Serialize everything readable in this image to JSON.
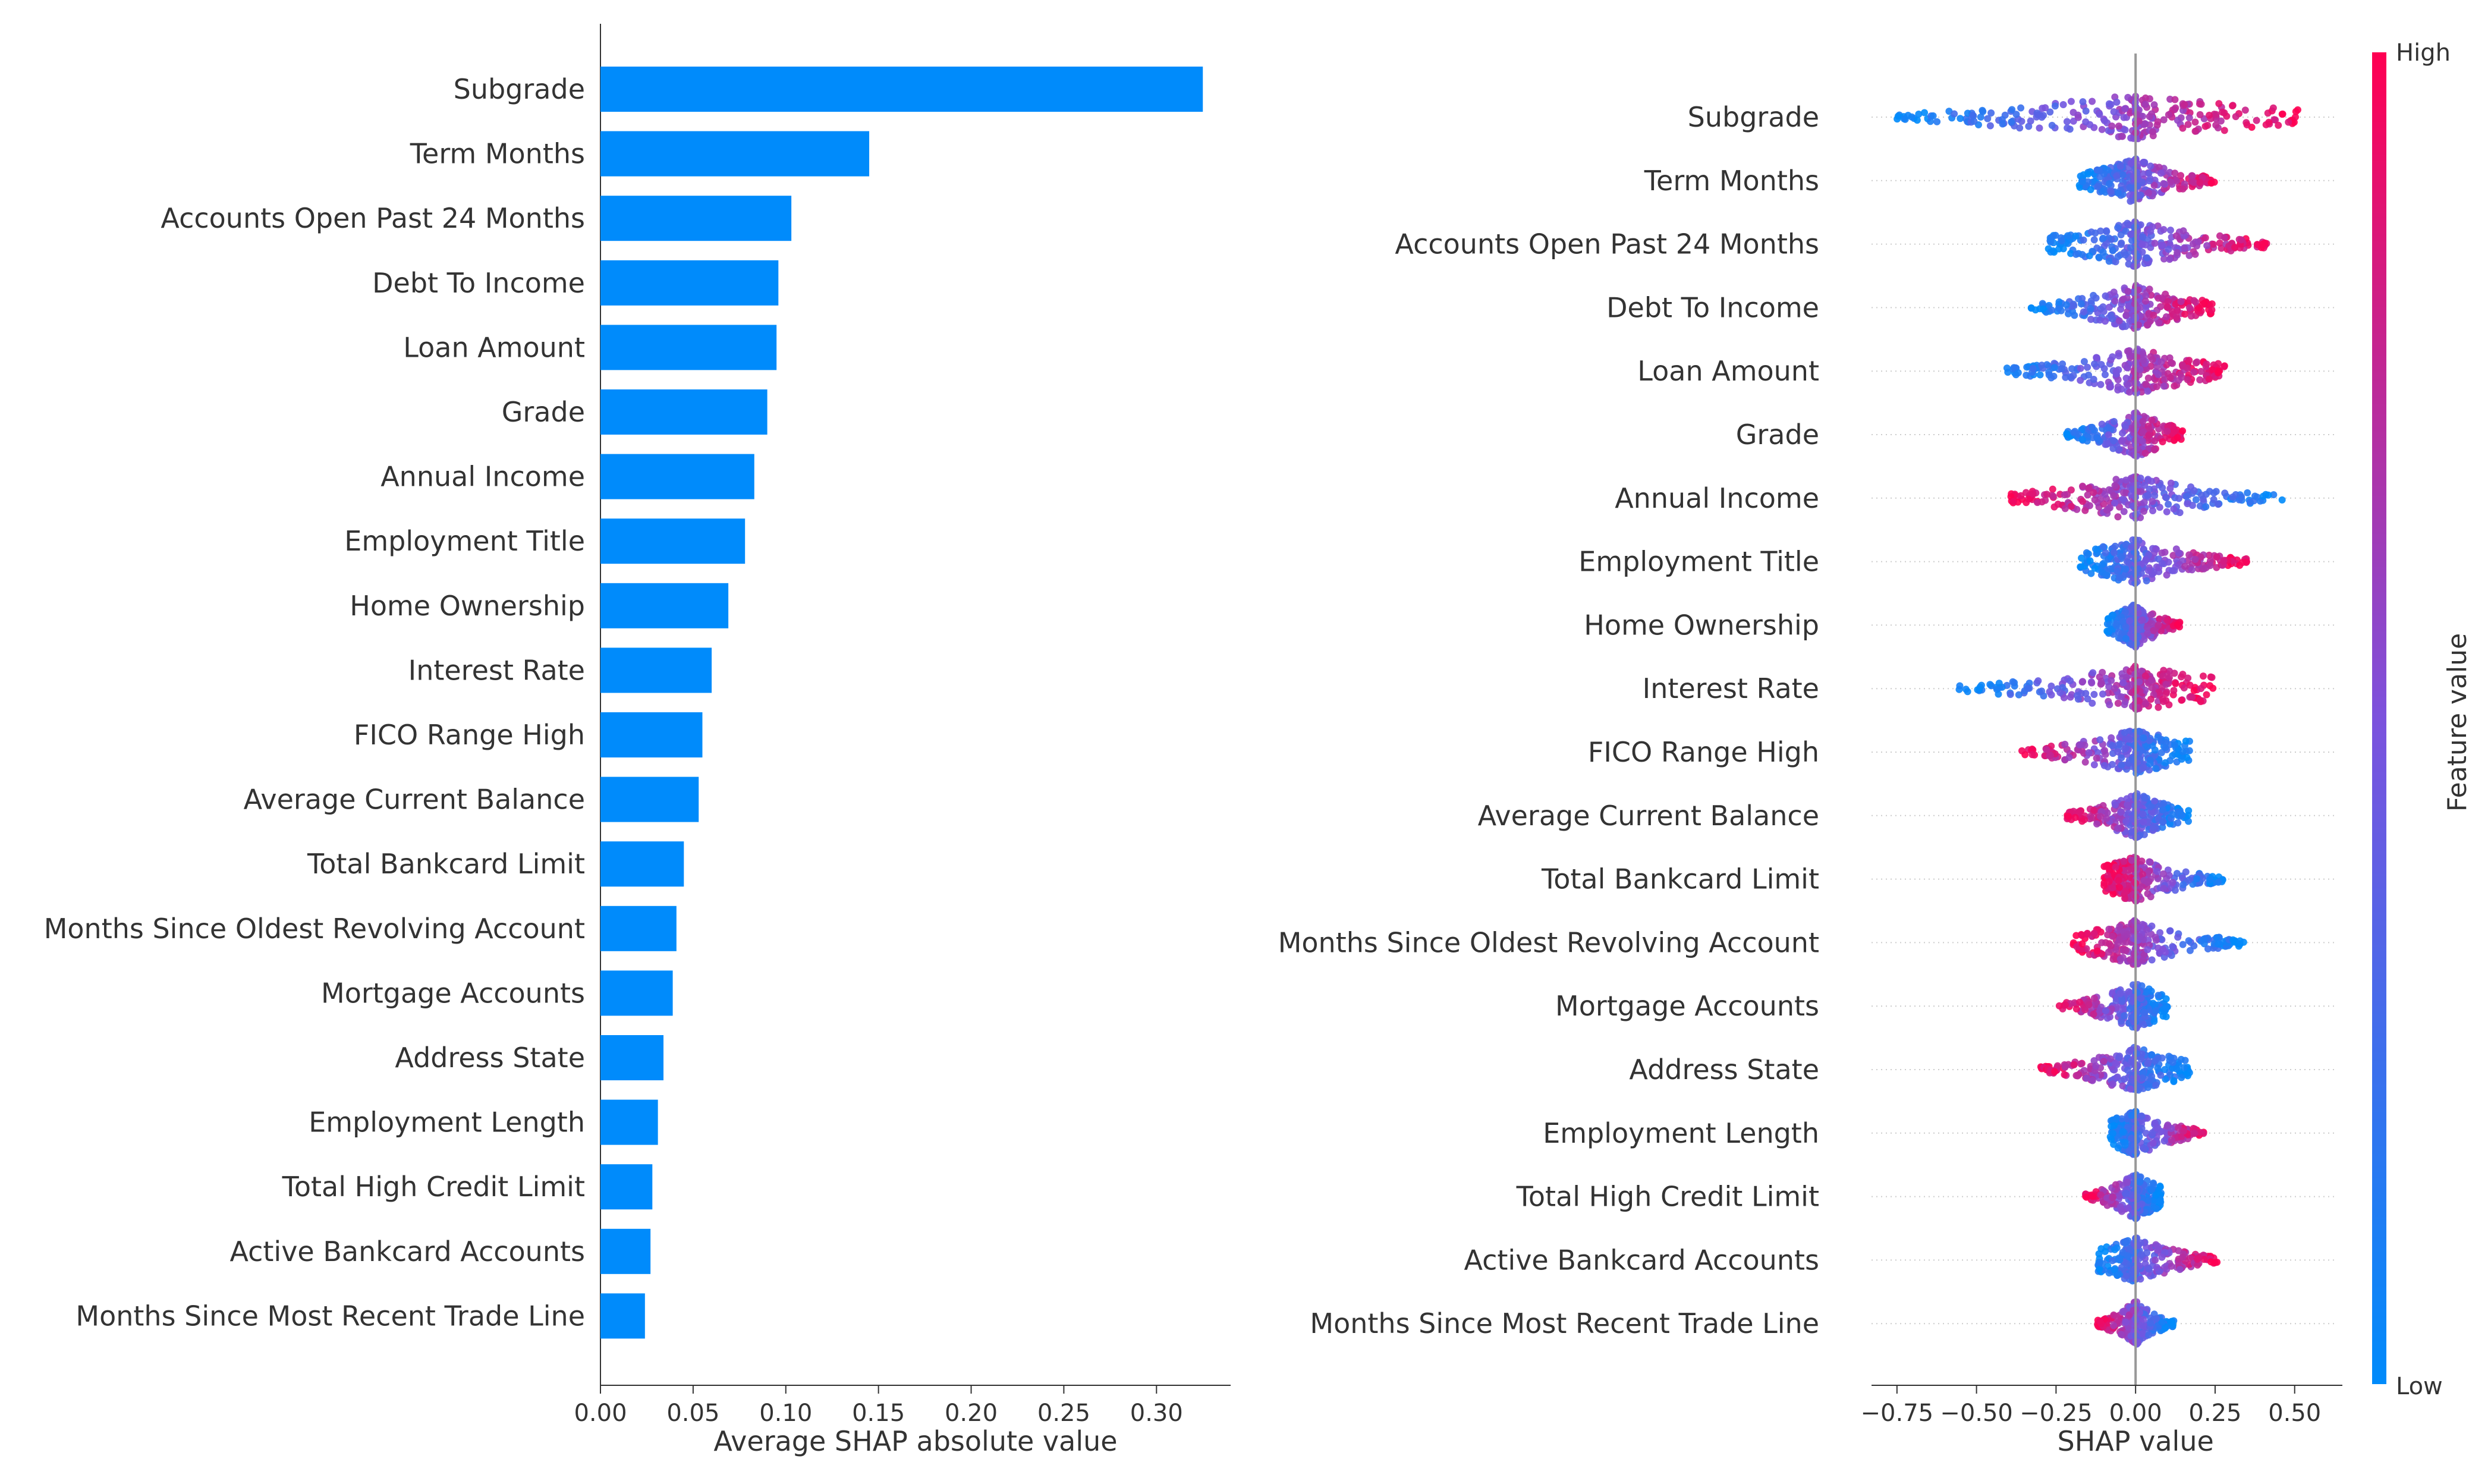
{
  "chart_data": [
    {
      "type": "bar",
      "orientation": "horizontal",
      "categories": [
        "Subgrade",
        "Term Months",
        "Accounts Open Past 24 Months",
        "Debt To Income",
        "Loan Amount",
        "Grade",
        "Annual Income",
        "Employment Title",
        "Home Ownership",
        "Interest Rate",
        "FICO Range High",
        "Average Current Balance",
        "Total Bankcard Limit",
        "Months Since Oldest Revolving Account",
        "Mortgage Accounts",
        "Address State",
        "Employment Length",
        "Total High Credit Limit",
        "Active Bankcard Accounts",
        "Months Since Most Recent Trade Line"
      ],
      "values": [
        0.325,
        0.145,
        0.103,
        0.096,
        0.095,
        0.09,
        0.083,
        0.078,
        0.069,
        0.06,
        0.055,
        0.053,
        0.045,
        0.041,
        0.039,
        0.034,
        0.031,
        0.028,
        0.027,
        0.024
      ],
      "xlabel": "Average SHAP absolute value",
      "xlim": [
        0,
        0.34
      ],
      "xticks": [
        0.0,
        0.05,
        0.1,
        0.15,
        0.2,
        0.25,
        0.3
      ],
      "xtick_labels": [
        "0.00",
        "0.05",
        "0.10",
        "0.15",
        "0.20",
        "0.25",
        "0.30"
      ],
      "bar_color": "#008bfb",
      "grid": false
    },
    {
      "type": "scatter",
      "subtype": "beeswarm",
      "categories": [
        "Subgrade",
        "Term Months",
        "Accounts Open Past 24 Months",
        "Debt To Income",
        "Loan Amount",
        "Grade",
        "Annual Income",
        "Employment Title",
        "Home Ownership",
        "Interest Rate",
        "FICO Range High",
        "Average Current Balance",
        "Total Bankcard Limit",
        "Months Since Oldest Revolving Account",
        "Mortgage Accounts",
        "Address State",
        "Employment Length",
        "Total High Credit Limit",
        "Active Bankcard Accounts",
        "Months Since Most Recent Trade Line"
      ],
      "shap_range": [
        [
          -0.78,
          0.52
        ],
        [
          -0.18,
          0.25
        ],
        [
          -0.28,
          0.44
        ],
        [
          -0.33,
          0.25
        ],
        [
          -0.42,
          0.28
        ],
        [
          -0.22,
          0.15
        ],
        [
          -0.4,
          0.47
        ],
        [
          -0.18,
          0.35
        ],
        [
          -0.09,
          0.14
        ],
        [
          -0.56,
          0.25
        ],
        [
          -0.36,
          0.17
        ],
        [
          -0.22,
          0.17
        ],
        [
          -0.1,
          0.28
        ],
        [
          -0.2,
          0.34
        ],
        [
          -0.24,
          0.1
        ],
        [
          -0.3,
          0.17
        ],
        [
          -0.08,
          0.22
        ],
        [
          -0.16,
          0.08
        ],
        [
          -0.12,
          0.26
        ],
        [
          -0.12,
          0.12
        ]
      ],
      "high_side": [
        "right",
        "right",
        "right",
        "right",
        "right",
        "right",
        "left",
        "right",
        "right",
        "right",
        "left",
        "left",
        "left",
        "left",
        "left",
        "left",
        "right",
        "left",
        "right",
        "left"
      ],
      "xlabel": "SHAP value",
      "xlim": [
        -0.83,
        0.65
      ],
      "xticks": [
        -0.75,
        -0.5,
        -0.25,
        0.0,
        0.25,
        0.5
      ],
      "xtick_labels": [
        "−0.75",
        "−0.50",
        "−0.25",
        "0.00",
        "0.25",
        "0.50"
      ],
      "colorbar": {
        "label": "Feature value",
        "high": "High",
        "low": "Low",
        "low_color": "#008bfb",
        "high_color": "#ff0052"
      },
      "grid": false
    }
  ]
}
